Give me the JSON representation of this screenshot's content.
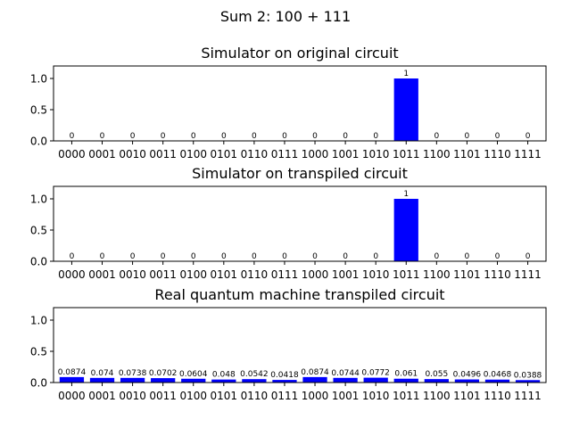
{
  "chart_data": {
    "suptitle": "Sum 2: 100 + 111",
    "subplots": [
      {
        "type": "bar",
        "title": "Simulator on original circuit",
        "categories": [
          "0000",
          "0001",
          "0010",
          "0011",
          "0100",
          "0101",
          "0110",
          "0111",
          "1000",
          "1001",
          "1010",
          "1011",
          "1100",
          "1101",
          "1110",
          "1111"
        ],
        "values": [
          0,
          0,
          0,
          0,
          0,
          0,
          0,
          0,
          0,
          0,
          0,
          1,
          0,
          0,
          0,
          0
        ],
        "value_labels": [
          "0",
          "0",
          "0",
          "0",
          "0",
          "0",
          "0",
          "0",
          "0",
          "0",
          "0",
          "1",
          "0",
          "0",
          "0",
          "0"
        ],
        "yticks": [
          "0.0",
          "0.5",
          "1.0"
        ],
        "ylim": [
          0,
          1.2
        ],
        "color": "#0000ff"
      },
      {
        "type": "bar",
        "title": "Simulator on transpiled circuit",
        "categories": [
          "0000",
          "0001",
          "0010",
          "0011",
          "0100",
          "0101",
          "0110",
          "0111",
          "1000",
          "1001",
          "1010",
          "1011",
          "1100",
          "1101",
          "1110",
          "1111"
        ],
        "values": [
          0,
          0,
          0,
          0,
          0,
          0,
          0,
          0,
          0,
          0,
          0,
          1,
          0,
          0,
          0,
          0
        ],
        "value_labels": [
          "0",
          "0",
          "0",
          "0",
          "0",
          "0",
          "0",
          "0",
          "0",
          "0",
          "0",
          "1",
          "0",
          "0",
          "0",
          "0"
        ],
        "yticks": [
          "0.0",
          "0.5",
          "1.0"
        ],
        "ylim": [
          0,
          1.2
        ],
        "color": "#0000ff"
      },
      {
        "type": "bar",
        "title": "Real quantum machine transpiled circuit",
        "categories": [
          "0000",
          "0001",
          "0010",
          "0011",
          "0100",
          "0101",
          "0110",
          "0111",
          "1000",
          "1001",
          "1010",
          "1011",
          "1100",
          "1101",
          "1110",
          "1111"
        ],
        "values": [
          0.0874,
          0.074,
          0.0738,
          0.0702,
          0.0604,
          0.048,
          0.0542,
          0.0418,
          0.0874,
          0.0744,
          0.0772,
          0.061,
          0.055,
          0.0496,
          0.0468,
          0.0388
        ],
        "value_labels": [
          "0.0874",
          "0.074",
          "0.0738",
          "0.0702",
          "0.0604",
          "0.048",
          "0.0542",
          "0.0418",
          "0.0874",
          "0.0744",
          "0.0772",
          "0.061",
          "0.055",
          "0.0496",
          "0.0468",
          "0.0388"
        ],
        "yticks": [
          "0.0",
          "0.5",
          "1.0"
        ],
        "ylim": [
          0,
          1.2
        ],
        "color": "#0000ff"
      }
    ]
  }
}
